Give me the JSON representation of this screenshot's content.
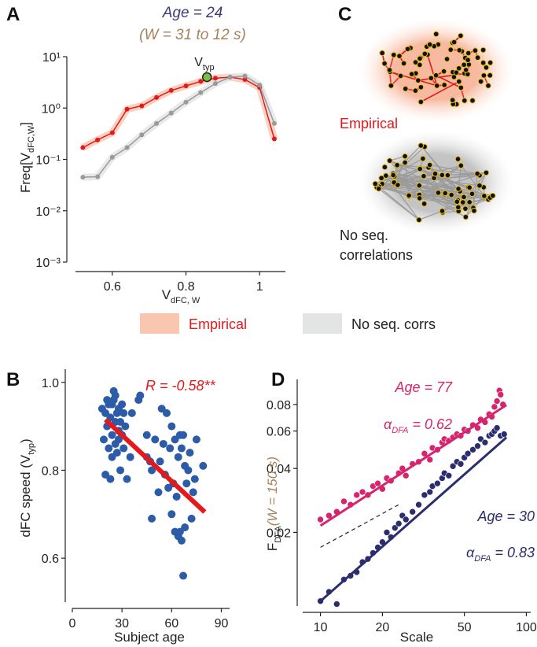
{
  "chart_data": [
    {
      "type": "line",
      "panel_label": "A",
      "title": "Age = 24",
      "subtitle": "(W = 31 to 12 s)",
      "xlabel": [
        "V",
        "dFC, W"
      ],
      "ylabel": [
        "Freq[V",
        "dFC,W",
        "]"
      ],
      "x": [
        0.52,
        0.56,
        0.6,
        0.64,
        0.68,
        0.72,
        0.76,
        0.8,
        0.84,
        0.88,
        0.92,
        0.96,
        1.0,
        1.04
      ],
      "series": [
        {
          "name": "Empirical",
          "color": "#e3191c",
          "band_color": "#f9c6b0",
          "values": [
            0.17,
            0.24,
            0.33,
            0.95,
            1.1,
            1.6,
            2.2,
            2.7,
            3.3,
            3.8,
            4.0,
            3.6,
            2.5,
            0.25
          ]
        },
        {
          "name": "No seq. corrs",
          "color": "#9a9a9a",
          "band_color": "#e3e4e4",
          "values": [
            0.045,
            0.046,
            0.11,
            0.17,
            0.3,
            0.5,
            0.8,
            1.3,
            2.0,
            3.0,
            4.0,
            4.2,
            2.8,
            0.5
          ]
        }
      ],
      "highlight": {
        "label": [
          "V",
          "typ"
        ],
        "x": 0.857,
        "y": 4.0,
        "color": "#7ac143"
      },
      "xlim": [
        0.5,
        1.07
      ],
      "xticks": [
        0.6,
        0.8,
        1
      ],
      "ylim": [
        0.001,
        10
      ],
      "yscale": "log",
      "yticks": [
        {
          "value": 10,
          "label": "10¹"
        },
        {
          "value": 1,
          "label": "10⁰"
        },
        {
          "value": 0.1,
          "label": "10⁻¹"
        },
        {
          "value": 0.01,
          "label": "10⁻²"
        },
        {
          "value": 0.001,
          "label": "10⁻³"
        }
      ]
    },
    {
      "type": "scatter",
      "panel_label": "B",
      "annotation": "R = -0.58**",
      "xlabel": "Subject age",
      "ylabel": [
        "dFC speed (V",
        "typ",
        ")"
      ],
      "color": "#2c5ba8",
      "x": [
        18,
        20,
        21,
        22,
        23,
        24,
        25,
        26,
        27,
        28,
        20,
        22,
        24,
        25,
        26,
        28,
        29,
        30,
        31,
        32,
        33,
        23,
        27,
        29,
        30,
        19,
        21,
        24,
        26,
        28,
        31,
        36,
        41,
        40,
        45,
        47,
        48,
        50,
        52,
        53,
        54,
        55,
        56,
        57,
        58,
        59,
        60,
        60,
        61,
        62,
        63,
        64,
        65,
        65,
        66,
        67,
        68,
        68,
        69,
        70,
        71,
        72,
        73,
        75,
        67,
        62,
        64,
        66,
        74,
        79,
        45,
        48,
        35
      ],
      "values": [
        0.94,
        0.93,
        0.9,
        0.95,
        0.92,
        0.88,
        0.96,
        0.91,
        0.93,
        0.89,
        0.79,
        0.85,
        0.83,
        0.98,
        0.86,
        0.94,
        0.91,
        0.88,
        0.93,
        0.9,
        0.78,
        0.78,
        0.84,
        0.8,
        0.95,
        0.87,
        0.96,
        0.95,
        0.97,
        0.87,
        0.85,
        0.93,
        0.97,
        0.96,
        0.83,
        0.82,
        0.8,
        0.87,
        0.75,
        0.82,
        0.94,
        0.86,
        0.79,
        0.93,
        0.76,
        0.85,
        0.7,
        0.9,
        0.77,
        0.87,
        0.74,
        0.83,
        0.88,
        0.66,
        0.64,
        0.88,
        0.81,
        0.67,
        0.77,
        0.8,
        0.84,
        0.69,
        0.75,
        0.87,
        0.56,
        0.66,
        0.65,
        0.85,
        0.78,
        0.81,
        0.88,
        0.69,
        0.83
      ],
      "fit": {
        "x": [
          20,
          80
        ],
        "values": [
          0.915,
          0.705
        ],
        "color": "#e3191c"
      },
      "xlim": [
        0,
        95
      ],
      "xticks": [
        0,
        30,
        60,
        90
      ],
      "ylim": [
        0.5,
        1.03
      ],
      "yticks": [
        {
          "value": 1,
          "label": "1.0"
        },
        0.8,
        0.6
      ]
    },
    {
      "type": "scatter",
      "panel_label": "D",
      "xlabel": "Scale",
      "ylabel": [
        "F",
        "DFA",
        "(W = 150 s)"
      ],
      "series": [
        {
          "name": "Age = 77",
          "label": [
            "α",
            "DFA",
            " = 0.62"
          ],
          "color": "#d6246e",
          "x": [
            10,
            11,
            12,
            13,
            14,
            15,
            16,
            17,
            18,
            19,
            20,
            21,
            22,
            24,
            25,
            26,
            28,
            30,
            32,
            34,
            35,
            37,
            39,
            40,
            42,
            44,
            46,
            48,
            50,
            52,
            55,
            58,
            60,
            63,
            66,
            68,
            70,
            72,
            74,
            75,
            77
          ],
          "values": [
            0.023,
            0.024,
            0.025,
            0.028,
            0.027,
            0.03,
            0.031,
            0.03,
            0.033,
            0.034,
            0.032,
            0.036,
            0.035,
            0.038,
            0.04,
            0.037,
            0.042,
            0.043,
            0.047,
            0.044,
            0.05,
            0.049,
            0.053,
            0.055,
            0.054,
            0.056,
            0.058,
            0.057,
            0.061,
            0.06,
            0.064,
            0.062,
            0.068,
            0.066,
            0.072,
            0.07,
            0.078,
            0.083,
            0.093,
            0.089,
            0.08
          ],
          "fit": {
            "x": [
              10,
              80
            ],
            "values": [
              0.0215,
              0.0795
            ]
          }
        },
        {
          "name": "Age = 30",
          "label": [
            "α",
            "DFA",
            " = 0.83"
          ],
          "color": "#2b2d6e",
          "x": [
            10,
            11,
            12,
            13,
            14,
            15,
            16,
            17,
            18,
            19,
            20,
            21,
            22,
            23,
            24,
            25,
            26,
            28,
            30,
            32,
            34,
            35,
            37,
            39,
            40,
            42,
            44,
            46,
            48,
            50,
            52,
            55,
            58,
            60,
            63,
            66,
            68,
            70,
            72,
            75,
            78
          ],
          "values": [
            0.0095,
            0.0105,
            0.0092,
            0.012,
            0.0125,
            0.013,
            0.0145,
            0.015,
            0.016,
            0.017,
            0.018,
            0.02,
            0.019,
            0.021,
            0.022,
            0.024,
            0.023,
            0.025,
            0.027,
            0.03,
            0.031,
            0.033,
            0.034,
            0.036,
            0.038,
            0.037,
            0.041,
            0.043,
            0.042,
            0.045,
            0.047,
            0.049,
            0.051,
            0.055,
            0.053,
            0.057,
            0.058,
            0.06,
            0.062,
            0.057,
            0.058
          ],
          "fit": {
            "x": [
              10,
              80
            ],
            "values": [
              0.0095,
              0.056
            ]
          }
        }
      ],
      "reference": {
        "x": [
          10,
          24
        ],
        "values": [
          0.017,
          0.027
        ]
      },
      "xlim": [
        8.2,
        105
      ],
      "xscale": "log",
      "xticks": [
        10,
        20,
        50,
        100
      ],
      "ylim": [
        0.009,
        0.105
      ],
      "yscale": "log",
      "yticks": [
        0.02,
        0.04,
        0.06,
        0.08
      ]
    }
  ],
  "network_panel": {
    "panel_label": "C",
    "top_label": "Empirical",
    "bottom_label": [
      "No seq.",
      "correlations"
    ]
  }
}
